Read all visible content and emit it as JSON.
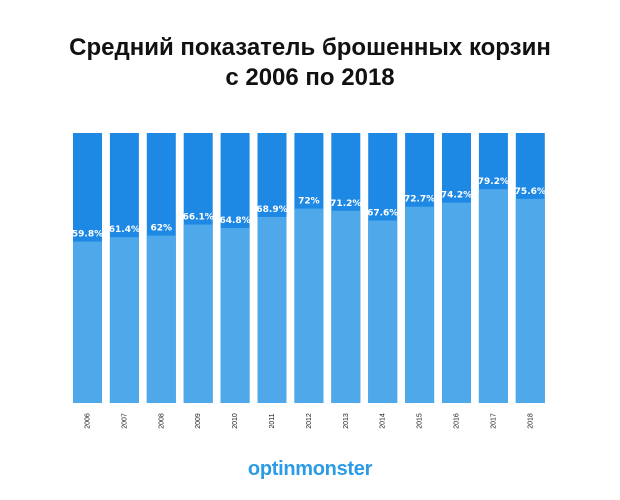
{
  "title": {
    "line1": "Средний показатель брошенных корзин",
    "line2": "с 2006 по 2018"
  },
  "logo": {
    "text": "optinmonster"
  },
  "colors": {
    "bar_top": "#1e88e5",
    "bar_bottom": "#4ea8ea",
    "title": "#111111",
    "brand": "#2c9be6"
  },
  "chart_data": {
    "type": "bar",
    "stacked_to": 100,
    "categories": [
      "2006",
      "2007",
      "2008",
      "2009",
      "2010",
      "2011",
      "2012",
      "2013",
      "2014",
      "2015",
      "2016",
      "2017",
      "2018"
    ],
    "values": [
      59.8,
      61.4,
      62,
      66.1,
      64.8,
      68.9,
      72,
      71.2,
      67.6,
      72.7,
      74.2,
      79.2,
      75.6
    ],
    "labels": [
      "59.8%",
      "61.4%",
      "62%",
      "66.1%",
      "64.8%",
      "68.9%",
      "72%",
      "71.2%",
      "67.6%",
      "72.7%",
      "74.2%",
      "79.2%",
      "75.6%"
    ],
    "title": "Средний показатель брошенных корзин с 2006 по 2018",
    "ylim": [
      0,
      100
    ],
    "grid": false
  }
}
